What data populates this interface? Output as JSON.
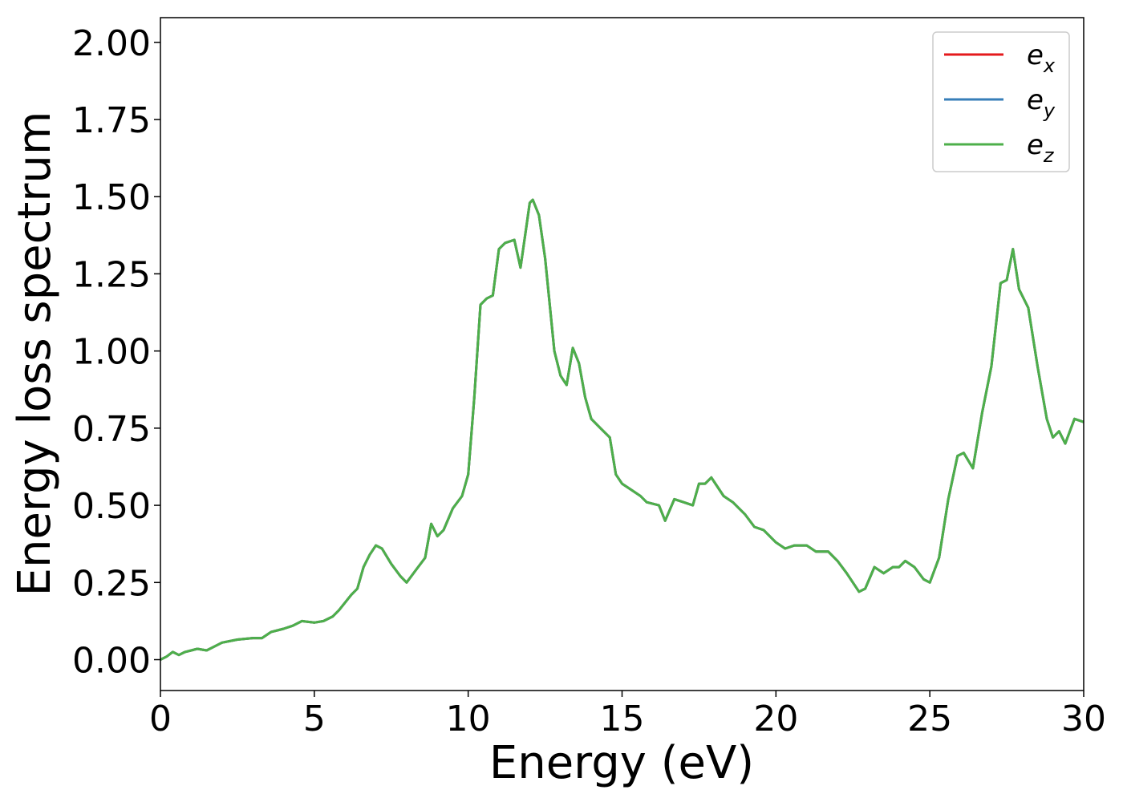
{
  "chart_data": {
    "type": "line",
    "title": "",
    "xlabel": "Energy (eV)",
    "ylabel": "Energy loss spectrum",
    "xlim": [
      0,
      30
    ],
    "ylim": [
      -0.1,
      2.08
    ],
    "xticks": [
      0,
      5,
      10,
      15,
      20,
      25,
      30
    ],
    "xtick_labels": [
      "0",
      "5",
      "10",
      "15",
      "20",
      "25",
      "30"
    ],
    "yticks": [
      0,
      0.25,
      0.5,
      0.75,
      1.0,
      1.25,
      1.5,
      1.75,
      2.0
    ],
    "ytick_labels": [
      "0.00",
      "0.25",
      "0.50",
      "0.75",
      "1.00",
      "1.25",
      "1.50",
      "1.75",
      "2.00"
    ],
    "grid": false,
    "legend_position": "top-right",
    "series": [
      {
        "name": "e",
        "subscript": "x",
        "color": "#e41a1c"
      },
      {
        "name": "e",
        "subscript": "y",
        "color": "#377eb8"
      },
      {
        "name": "e",
        "subscript": "z",
        "color": "#4daf4a"
      }
    ],
    "shared_curve": {
      "x": [
        0,
        0.2,
        0.4,
        0.6,
        0.8,
        1.0,
        1.2,
        1.5,
        1.8,
        2.0,
        2.5,
        3.0,
        3.3,
        3.6,
        3.8,
        4.0,
        4.3,
        4.6,
        5.0,
        5.3,
        5.6,
        5.8,
        6.0,
        6.2,
        6.4,
        6.6,
        6.8,
        7.0,
        7.2,
        7.5,
        7.8,
        8.0,
        8.3,
        8.6,
        8.8,
        9.0,
        9.2,
        9.5,
        9.8,
        10.0,
        10.2,
        10.4,
        10.6,
        10.8,
        11.0,
        11.2,
        11.5,
        11.7,
        11.9,
        12.0,
        12.1,
        12.3,
        12.5,
        12.8,
        13.0,
        13.2,
        13.4,
        13.6,
        13.8,
        14.0,
        14.3,
        14.6,
        14.8,
        15.0,
        15.3,
        15.6,
        15.8,
        16.2,
        16.4,
        16.7,
        17.0,
        17.3,
        17.5,
        17.7,
        17.9,
        18.3,
        18.6,
        19.0,
        19.3,
        19.6,
        20.0,
        20.3,
        20.6,
        21.0,
        21.3,
        21.7,
        22.0,
        22.3,
        22.7,
        22.9,
        23.2,
        23.5,
        23.8,
        24.0,
        24.2,
        24.5,
        24.8,
        25.0,
        25.3,
        25.6,
        25.9,
        26.1,
        26.4,
        26.7,
        27.0,
        27.3,
        27.5,
        27.7,
        27.9,
        28.2,
        28.5,
        28.8,
        29.0,
        29.2,
        29.4,
        29.7,
        30.0
      ],
      "y": [
        0.0,
        0.01,
        0.025,
        0.015,
        0.025,
        0.03,
        0.035,
        0.03,
        0.045,
        0.055,
        0.065,
        0.07,
        0.07,
        0.09,
        0.095,
        0.1,
        0.11,
        0.125,
        0.12,
        0.125,
        0.14,
        0.16,
        0.185,
        0.21,
        0.23,
        0.3,
        0.34,
        0.37,
        0.36,
        0.31,
        0.27,
        0.25,
        0.29,
        0.33,
        0.44,
        0.4,
        0.42,
        0.49,
        0.53,
        0.6,
        0.85,
        1.15,
        1.17,
        1.18,
        1.33,
        1.35,
        1.36,
        1.27,
        1.41,
        1.48,
        1.49,
        1.44,
        1.3,
        1.0,
        0.92,
        0.89,
        1.01,
        0.96,
        0.85,
        0.78,
        0.75,
        0.72,
        0.6,
        0.57,
        0.55,
        0.53,
        0.51,
        0.5,
        0.45,
        0.52,
        0.51,
        0.5,
        0.57,
        0.57,
        0.59,
        0.53,
        0.51,
        0.47,
        0.43,
        0.42,
        0.38,
        0.36,
        0.37,
        0.37,
        0.35,
        0.35,
        0.32,
        0.28,
        0.22,
        0.23,
        0.3,
        0.28,
        0.3,
        0.3,
        0.32,
        0.3,
        0.26,
        0.25,
        0.33,
        0.52,
        0.66,
        0.67,
        0.62,
        0.8,
        0.95,
        1.22,
        1.23,
        1.33,
        1.2,
        1.14,
        0.95,
        0.78,
        0.72,
        0.74,
        0.7,
        0.78,
        0.77
      ]
    }
  }
}
